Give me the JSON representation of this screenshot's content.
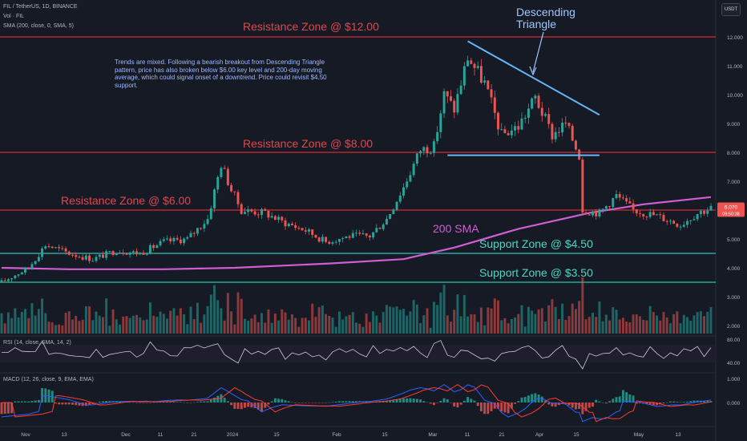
{
  "header": {
    "symbol_line": "FIL / TetherUS, 1D, BINANCE",
    "volume_line": "Vol · FIL",
    "sma_line": "SMA (200, close, 0, SMA, 5)",
    "currency_button": "USDT"
  },
  "annotations": {
    "resistance_12": "Resistance Zone @ $12.00",
    "resistance_8": "Resistance Zone @ $8.00",
    "resistance_6": "Resistance Zone @ $6.00",
    "support_450": "Support Zone @ $4.50",
    "support_350": "Support Zone @ $3.50",
    "sma_label": "200 SMA",
    "pattern_label_1": "Descending",
    "pattern_label_2": "Triangle",
    "commentary": "Trends are mixed. Following a bearish breakout from Descending Triangle pattern, price has also broken below $6.00 key level and 200-day moving average, which could signal onset of a downtrend. Price could revisit $4.50 support."
  },
  "price_axis": {
    "ticks": [
      "12.000",
      "11.000",
      "10.000",
      "9.000",
      "8.000",
      "7.000",
      "6.000",
      "5.000",
      "4.000",
      "3.000",
      "2.000"
    ],
    "last_price": "6.070",
    "countdown": "09:50:38"
  },
  "rsi_panel": {
    "legend": "RSI (14, close, SMA, 14, 2)",
    "ticks": [
      "80.00",
      "40.00"
    ]
  },
  "macd_panel": {
    "legend": "MACD (12, 26, close, 9, EMA, EMA)",
    "ticks": [
      "1.000",
      "0.000"
    ]
  },
  "time_axis": {
    "labels": [
      "Nov",
      "13",
      "Dec",
      "11",
      "21",
      "2024",
      "15",
      "Feb",
      "15",
      "Mar",
      "11",
      "21",
      "Apr",
      "15",
      "May",
      "13"
    ]
  },
  "colors": {
    "up": "#26a69a",
    "down": "#ef5350",
    "resistance": "#b22833",
    "support": "#26a69a",
    "sma": "#d05ed3",
    "triangle": "#64b5f6",
    "macd_line": "#2962ff",
    "signal_line": "#ff3b30"
  },
  "chart_data": {
    "type": "candlestick",
    "symbol": "FIL / TetherUS",
    "interval": "1D",
    "levels": {
      "resistance": [
        12.0,
        8.0,
        6.0
      ],
      "support": [
        4.5,
        3.5
      ]
    },
    "close_path": [
      {
        "x": "2023-10-24",
        "y": 3.5
      },
      {
        "x": "2023-11-01",
        "y": 4.0
      },
      {
        "x": "2023-11-06",
        "y": 4.8
      },
      {
        "x": "2023-11-13",
        "y": 4.5
      },
      {
        "x": "2023-11-20",
        "y": 4.3
      },
      {
        "x": "2023-11-27",
        "y": 4.6
      },
      {
        "x": "2023-12-04",
        "y": 4.5
      },
      {
        "x": "2023-12-11",
        "y": 4.9
      },
      {
        "x": "2023-12-18",
        "y": 5.0
      },
      {
        "x": "2023-12-24",
        "y": 5.7
      },
      {
        "x": "2023-12-28",
        "y": 7.6
      },
      {
        "x": "2023-12-31",
        "y": 6.7
      },
      {
        "x": "2024-01-03",
        "y": 6.0
      },
      {
        "x": "2024-01-10",
        "y": 5.9
      },
      {
        "x": "2024-01-15",
        "y": 5.6
      },
      {
        "x": "2024-01-22",
        "y": 5.3
      },
      {
        "x": "2024-01-28",
        "y": 4.9
      },
      {
        "x": "2024-02-04",
        "y": 5.1
      },
      {
        "x": "2024-02-10",
        "y": 5.1
      },
      {
        "x": "2024-02-15",
        "y": 5.7
      },
      {
        "x": "2024-02-20",
        "y": 6.8
      },
      {
        "x": "2024-02-25",
        "y": 8.1
      },
      {
        "x": "2024-02-29",
        "y": 8.2
      },
      {
        "x": "2024-03-03",
        "y": 10.0
      },
      {
        "x": "2024-03-06",
        "y": 9.5
      },
      {
        "x": "2024-03-10",
        "y": 11.3
      },
      {
        "x": "2024-03-15",
        "y": 10.4
      },
      {
        "x": "2024-03-20",
        "y": 8.6
      },
      {
        "x": "2024-03-25",
        "y": 8.9
      },
      {
        "x": "2024-03-30",
        "y": 9.9
      },
      {
        "x": "2024-04-04",
        "y": 8.6
      },
      {
        "x": "2024-04-08",
        "y": 9.0
      },
      {
        "x": "2024-04-12",
        "y": 7.9
      },
      {
        "x": "2024-04-13",
        "y": 6.0
      },
      {
        "x": "2024-04-18",
        "y": 5.9
      },
      {
        "x": "2024-04-23",
        "y": 6.5
      },
      {
        "x": "2024-04-28",
        "y": 6.0
      },
      {
        "x": "2024-05-05",
        "y": 5.8
      },
      {
        "x": "2024-05-12",
        "y": 5.5
      },
      {
        "x": "2024-05-17",
        "y": 5.9
      },
      {
        "x": "2024-05-21",
        "y": 6.07
      }
    ],
    "sma_200": [
      {
        "x": "2023-10-24",
        "y": 4.0
      },
      {
        "x": "2023-11-13",
        "y": 3.95
      },
      {
        "x": "2023-12-11",
        "y": 3.95
      },
      {
        "x": "2024-01-01",
        "y": 4.0
      },
      {
        "x": "2024-01-29",
        "y": 4.15
      },
      {
        "x": "2024-02-20",
        "y": 4.3
      },
      {
        "x": "2024-03-06",
        "y": 4.7
      },
      {
        "x": "2024-03-25",
        "y": 5.35
      },
      {
        "x": "2024-04-15",
        "y": 5.9
      },
      {
        "x": "2024-05-01",
        "y": 6.2
      },
      {
        "x": "2024-05-21",
        "y": 6.45
      }
    ],
    "triangle": {
      "upper": [
        {
          "x": "2024-03-10",
          "y": 11.85
        },
        {
          "x": "2024-04-18",
          "y": 9.3
        }
      ],
      "lower": [
        {
          "x": "2024-03-04",
          "y": 7.9
        },
        {
          "x": "2024-04-18",
          "y": 7.9
        }
      ]
    }
  }
}
